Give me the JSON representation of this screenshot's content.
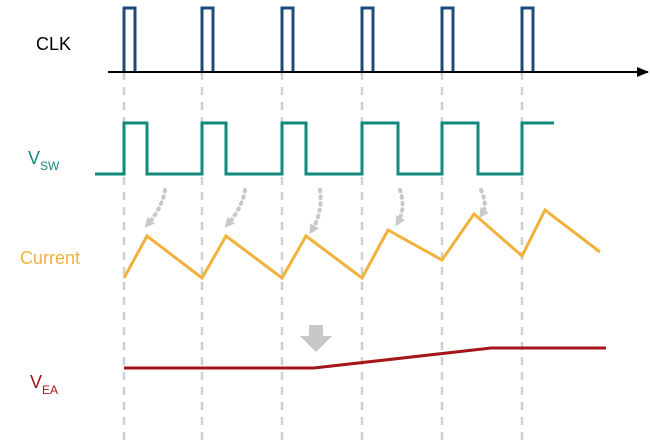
{
  "labels": {
    "clk": "CLK",
    "vsw_main": "V",
    "vsw_sub": "SW",
    "current": "Current",
    "vea_main": "V",
    "vea_sub": "EA"
  },
  "colors": {
    "clk": "#1f497d",
    "vsw": "#0f8a7e",
    "current": "#f2b13b",
    "vea": "#a4161a",
    "guides": "#cfcfcf",
    "arrow": "#c8c8c8",
    "axis": "#000000"
  }
}
